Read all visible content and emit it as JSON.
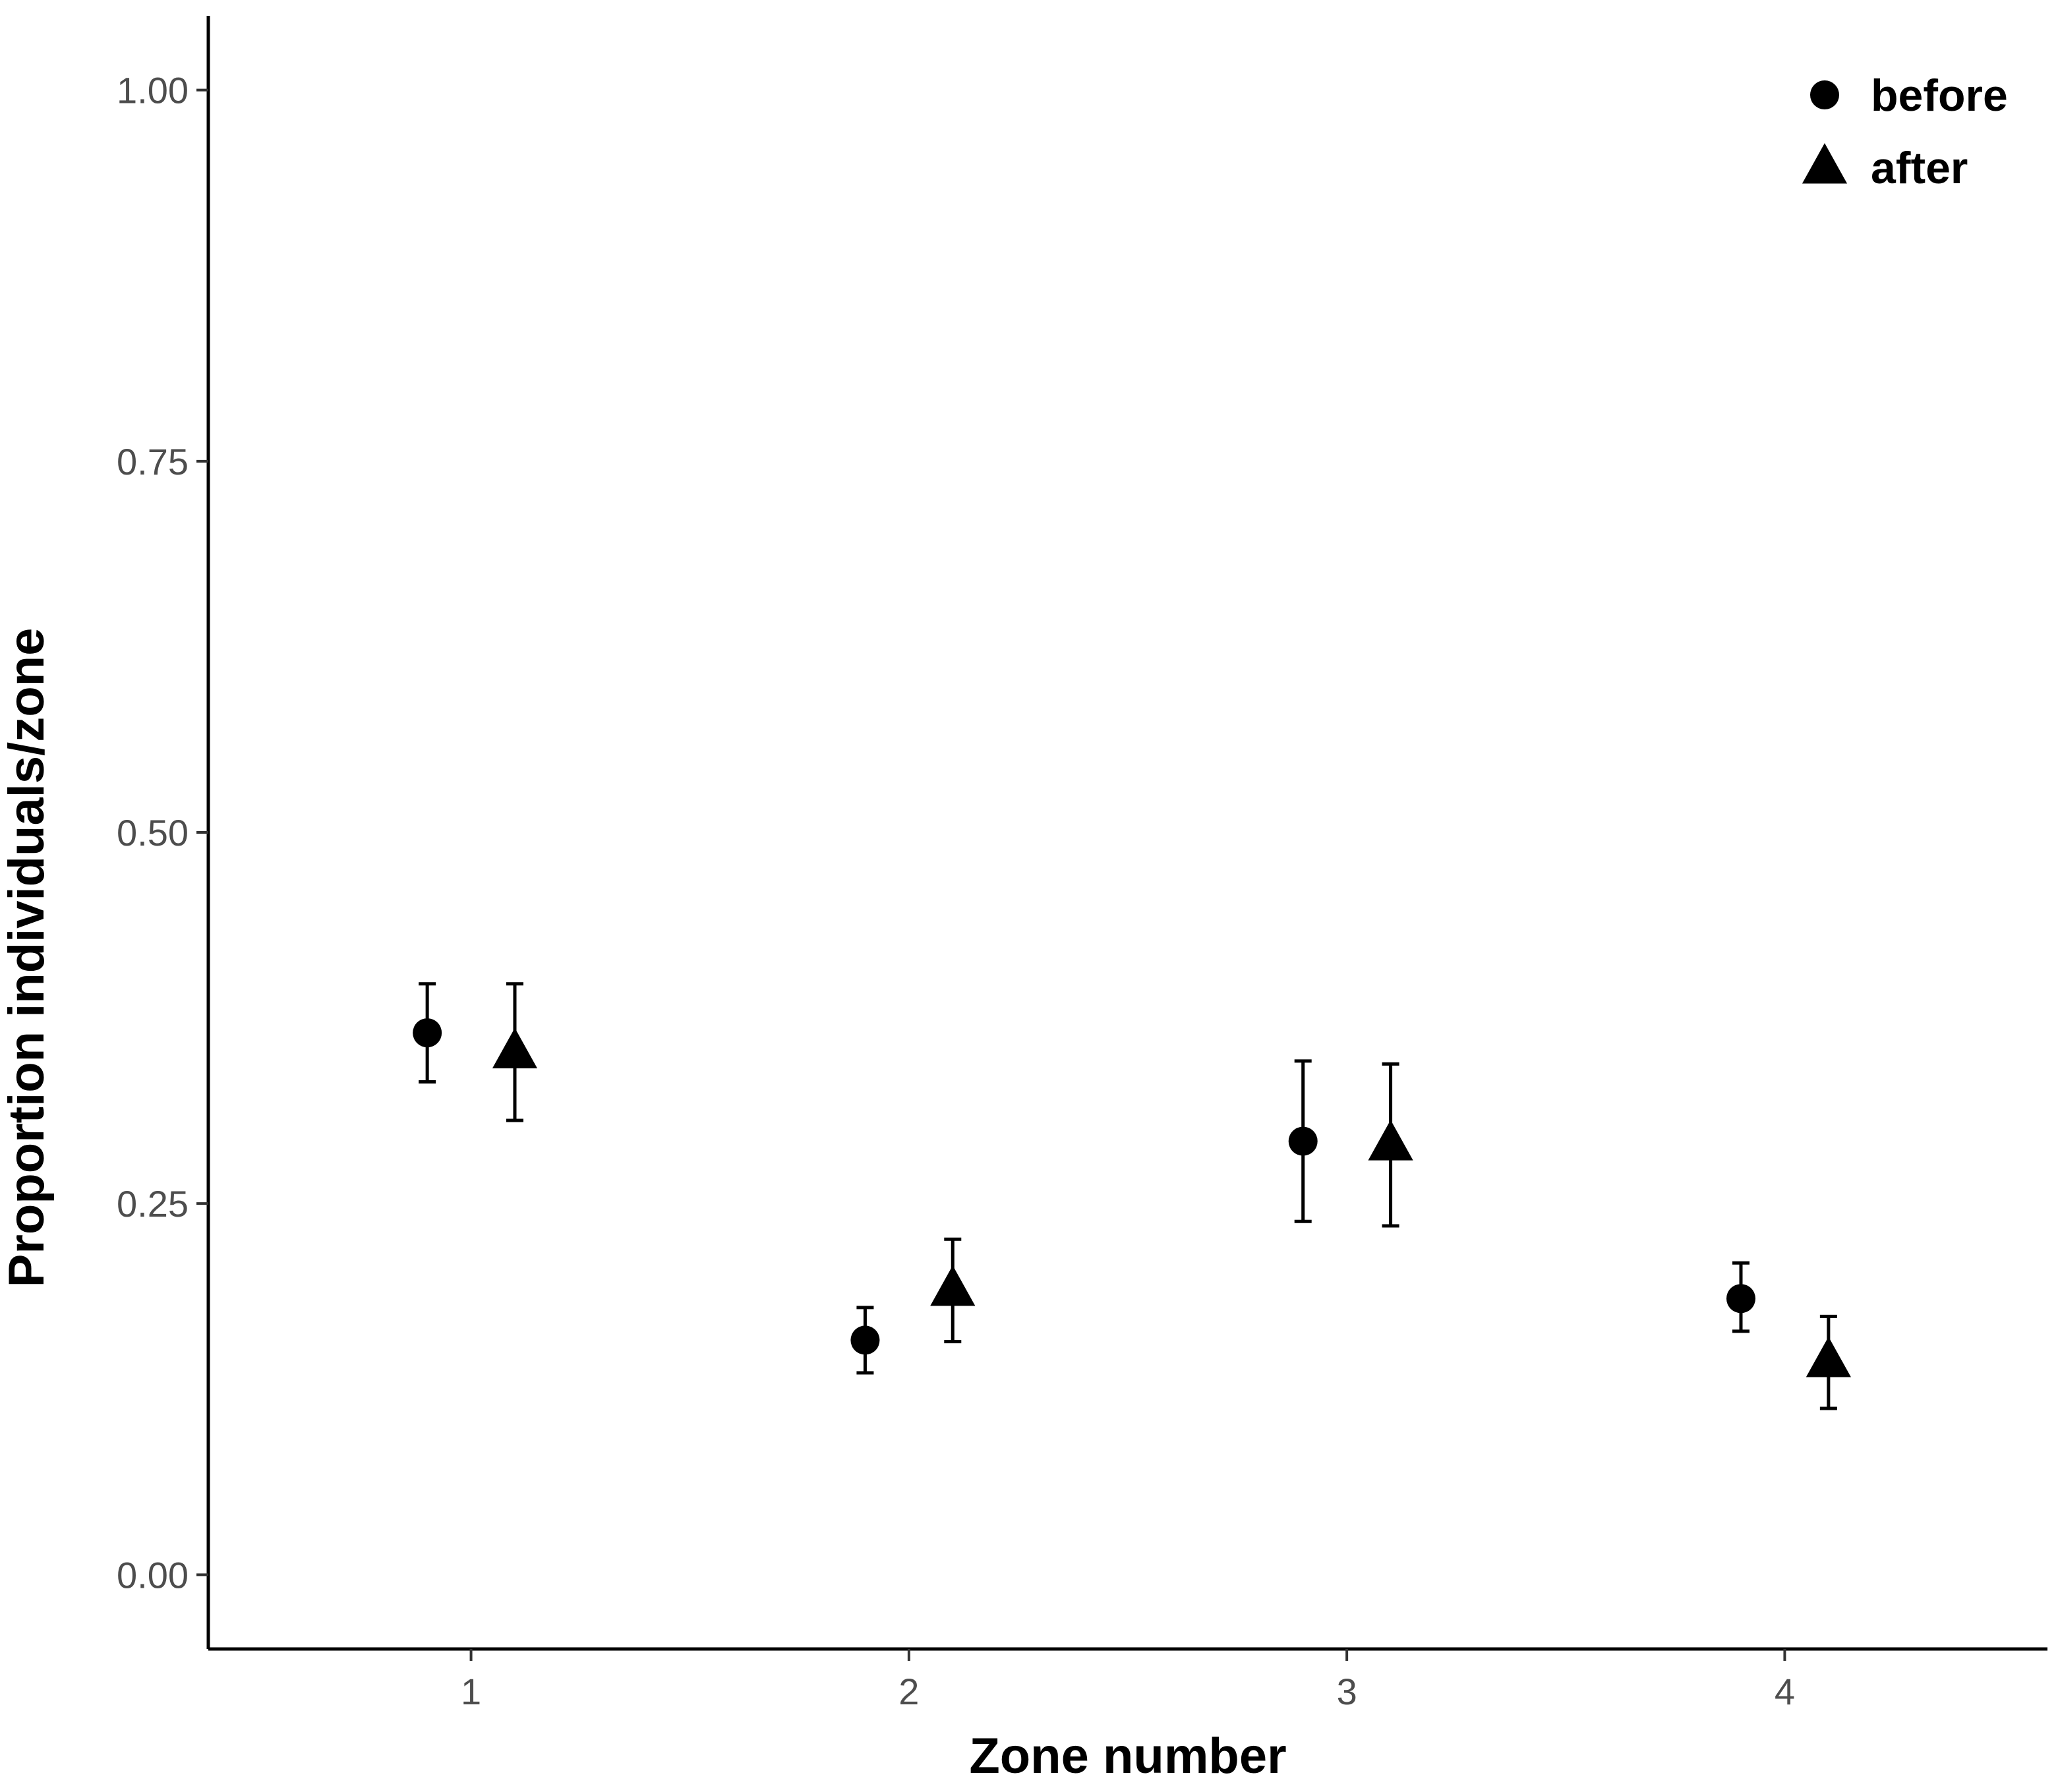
{
  "chart_data": {
    "type": "scatter",
    "title": "",
    "xlabel": "Zone number",
    "ylabel": "Proportion individuals/zone",
    "x_categories": [
      "1",
      "2",
      "3",
      "4"
    ],
    "xlim": [
      0.4,
      4.6
    ],
    "ylim": [
      -0.05,
      1.05
    ],
    "y_ticks": [
      0.0,
      0.25,
      0.5,
      0.75,
      1.0
    ],
    "y_tick_labels": [
      "0.00",
      "0.25",
      "0.50",
      "0.75",
      "1.00"
    ],
    "grid": false,
    "legend_position": "top-right",
    "series": [
      {
        "name": "before",
        "marker": "circle",
        "color": "#000000",
        "x": [
          0.9,
          1.9,
          2.9,
          3.9
        ],
        "y": [
          0.365,
          0.158,
          0.292,
          0.186
        ],
        "ymin": [
          0.332,
          0.136,
          0.238,
          0.164
        ],
        "ymax": [
          0.398,
          0.18,
          0.346,
          0.21
        ]
      },
      {
        "name": "after",
        "marker": "triangle",
        "color": "#000000",
        "x": [
          1.1,
          2.1,
          3.1,
          4.1
        ],
        "y": [
          0.352,
          0.192,
          0.29,
          0.144
        ],
        "ymin": [
          0.306,
          0.157,
          0.235,
          0.112
        ],
        "ymax": [
          0.398,
          0.226,
          0.344,
          0.174
        ]
      }
    ]
  }
}
